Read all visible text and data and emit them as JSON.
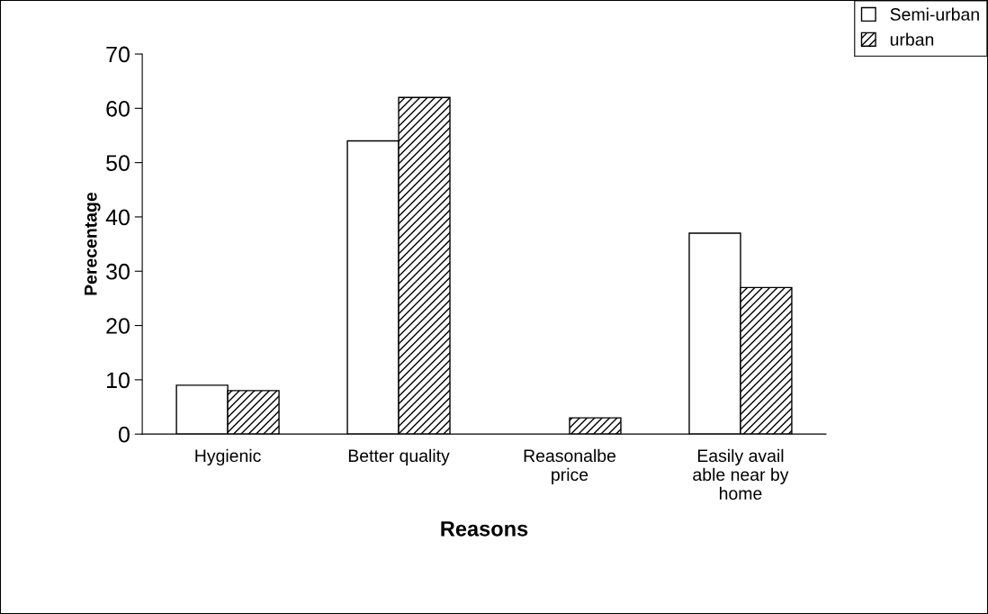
{
  "chart_data": {
    "type": "bar",
    "xlabel": "Reasons",
    "ylabel": "Perecentage",
    "categories": [
      "Hygienic",
      "Better quality",
      "Reasonalbe\nprice",
      "Easily avail\nable near by\nhome"
    ],
    "series": [
      {
        "name": "Semi-urban",
        "color": "#ffffff",
        "values": [
          9,
          54,
          0,
          37
        ]
      },
      {
        "name": "urban",
        "color": "#000000",
        "values": [
          8,
          62,
          3,
          27
        ]
      }
    ],
    "ylim": [
      0,
      70
    ],
    "yticks": [
      0,
      10,
      20,
      30,
      40,
      50,
      60,
      70
    ],
    "grid": false,
    "legend": "top right"
  }
}
